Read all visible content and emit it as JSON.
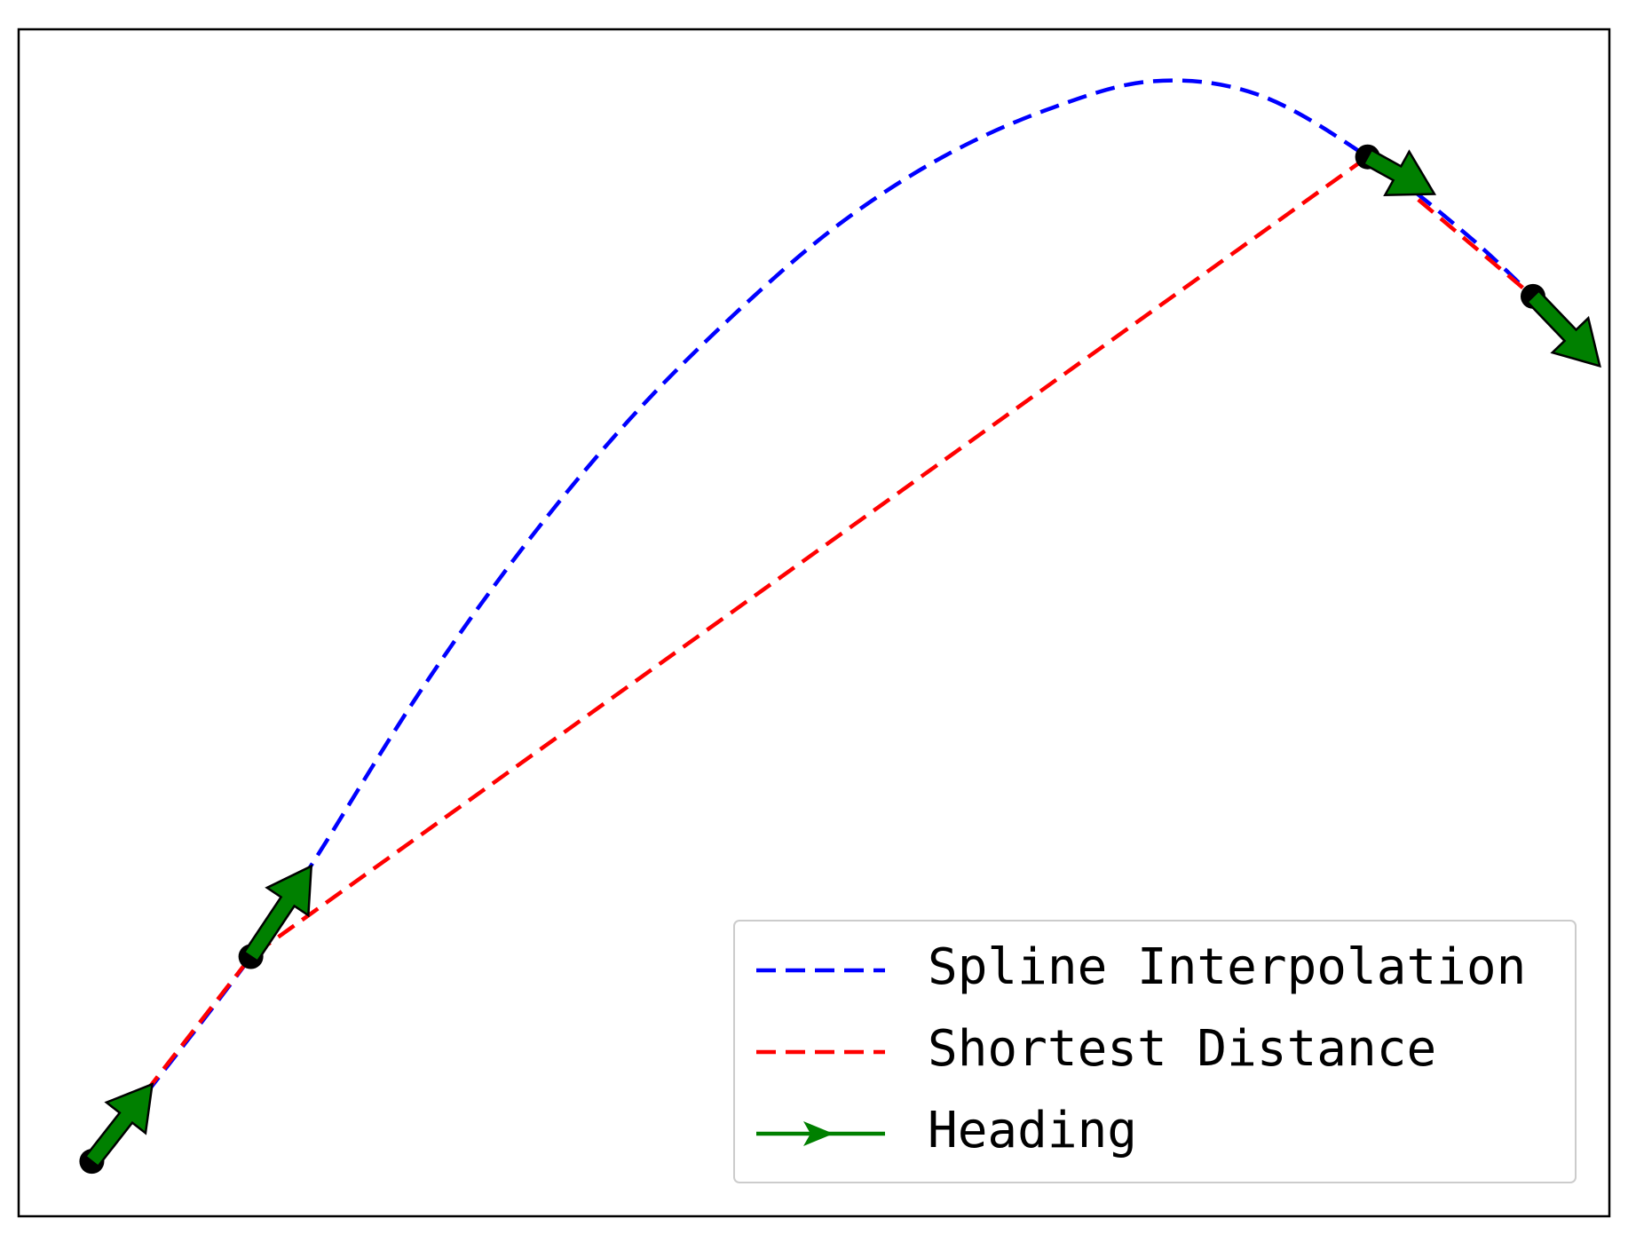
{
  "chart_data": {
    "type": "line",
    "xlim": [
      0,
      10
    ],
    "ylim": [
      0,
      8
    ],
    "legend": "lower right",
    "series": [
      {
        "name": "Spline Interpolation",
        "color": "#0000ff",
        "x": [
          0.46,
          0.84,
          1.46,
          1.86,
          2.52,
          3.18,
          3.84,
          4.5,
          5.15,
          5.81,
          6.47,
          7.13,
          7.79,
          8.48,
          9.11,
          9.52
        ],
        "values": [
          0.37,
          0.88,
          1.75,
          2.4,
          3.53,
          4.52,
          5.37,
          6.08,
          6.68,
          7.14,
          7.46,
          7.65,
          7.56,
          7.14,
          6.61,
          6.2
        ]
      },
      {
        "name": "Shortest Distance",
        "color": "#ff0000",
        "x": [
          0.46,
          1.46,
          8.48,
          9.52
        ],
        "values": [
          0.37,
          1.75,
          7.14,
          6.2
        ]
      }
    ],
    "heading": {
      "name": "Heading",
      "color": "#008000",
      "x": [
        0.46,
        1.46,
        8.48,
        9.52
      ],
      "y": [
        0.37,
        1.75,
        7.14,
        6.2
      ],
      "dx": [
        0.38,
        0.38,
        0.42,
        0.42
      ],
      "dy": [
        0.52,
        0.61,
        -0.25,
        -0.47
      ]
    }
  }
}
